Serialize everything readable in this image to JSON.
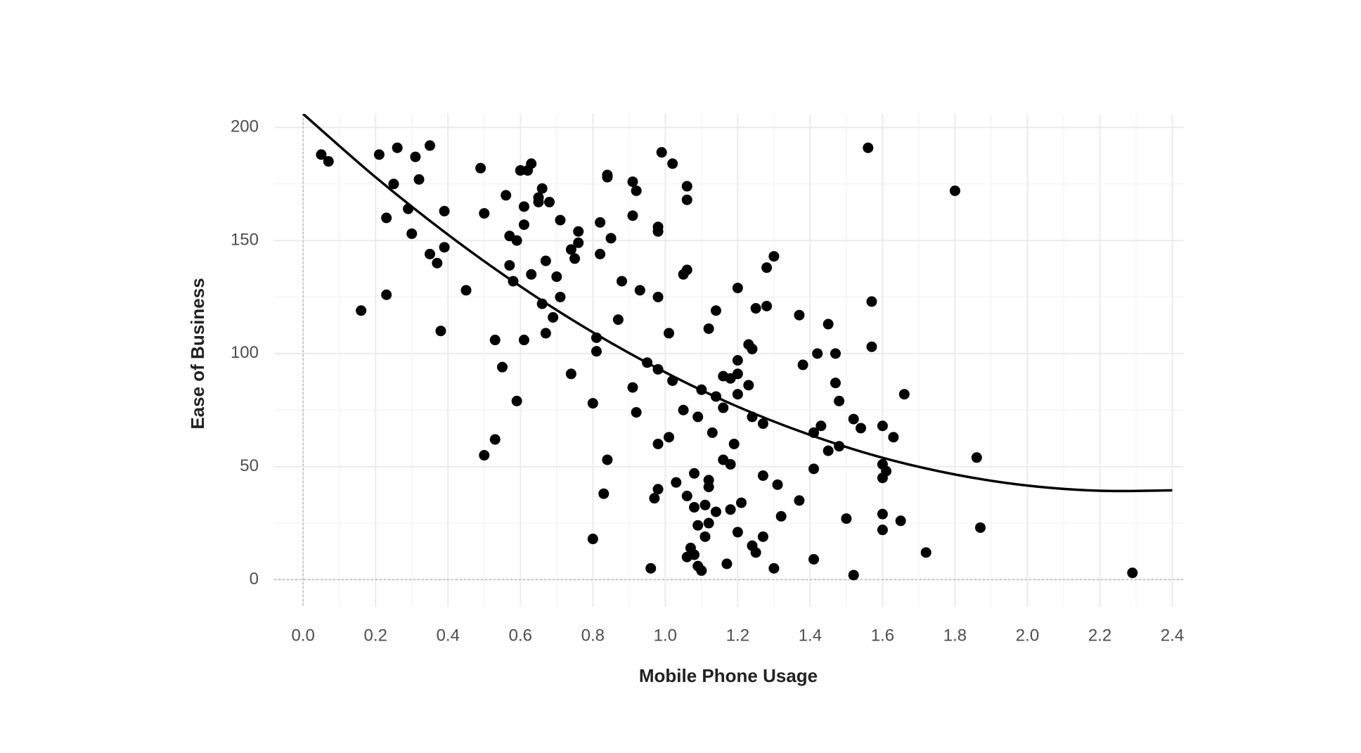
{
  "chart_data": {
    "type": "scatter",
    "x_label": "Mobile Phone Usage",
    "y_label": "Ease of Business",
    "xlim": [
      -0.08,
      2.43
    ],
    "ylim": [
      -12,
      206
    ],
    "xticks": [
      {
        "value": 0,
        "label": "0.0"
      },
      {
        "value": 0.2,
        "label": "0.2"
      },
      {
        "value": 0.4,
        "label": "0.4"
      },
      {
        "value": 0.6,
        "label": "0.6"
      },
      {
        "value": 0.8,
        "label": "0.8"
      },
      {
        "value": 1,
        "label": "1.0"
      },
      {
        "value": 1.2,
        "label": "1.2"
      },
      {
        "value": 1.4,
        "label": "1.4"
      },
      {
        "value": 1.6,
        "label": "1.6"
      },
      {
        "value": 1.8,
        "label": "1.8"
      },
      {
        "value": 2,
        "label": "2.0"
      },
      {
        "value": 2.2,
        "label": "2.2"
      },
      {
        "value": 2.4,
        "label": "2.4"
      }
    ],
    "yticks": [
      0,
      50,
      100,
      150,
      200
    ],
    "grid": true,
    "reference_lines": {
      "x": 0,
      "y": 0
    },
    "series": [
      {
        "color": "#000000",
        "x": [
          0.05,
          0.07,
          0.16,
          0.21,
          0.23,
          0.23,
          0.25,
          0.26,
          0.29,
          0.3,
          0.31,
          0.32,
          0.35,
          0.35,
          0.37,
          0.38,
          0.39,
          0.39,
          0.45,
          0.49,
          0.5,
          0.5,
          0.53,
          0.53,
          0.55,
          0.56,
          0.57,
          0.57,
          0.58,
          0.59,
          0.59,
          0.6,
          0.61,
          0.61,
          0.61,
          0.62,
          0.63,
          0.63,
          0.65,
          0.65,
          0.66,
          0.66,
          0.67,
          0.67,
          0.68,
          0.69,
          0.7,
          0.71,
          0.71,
          0.74,
          0.74,
          0.75,
          0.76,
          0.76,
          0.8,
          0.8,
          0.81,
          0.81,
          0.82,
          0.82,
          0.83,
          0.84,
          0.84,
          0.84,
          0.85,
          0.87,
          0.88,
          0.91,
          0.91,
          0.91,
          0.92,
          0.92,
          0.93,
          0.95,
          0.96,
          0.97,
          0.98,
          0.98,
          0.98,
          0.98,
          0.98,
          0.99,
          0.98,
          1.01,
          1.01,
          1.02,
          1.02,
          1.03,
          1.05,
          1.05,
          1.06,
          1.06,
          1.06,
          1.06,
          1.06,
          1.07,
          1.08,
          1.08,
          1.08,
          1.09,
          1.09,
          1.09,
          1.1,
          1.1,
          1.11,
          1.11,
          1.12,
          1.12,
          1.12,
          1.12,
          1.13,
          1.14,
          1.14,
          1.14,
          1.16,
          1.16,
          1.16,
          1.17,
          1.18,
          1.18,
          1.18,
          1.19,
          1.2,
          1.2,
          1.2,
          1.2,
          1.2,
          1.21,
          1.23,
          1.23,
          1.24,
          1.24,
          1.24,
          1.25,
          1.25,
          1.27,
          1.27,
          1.27,
          1.28,
          1.28,
          1.3,
          1.3,
          1.31,
          1.32,
          1.37,
          1.37,
          1.38,
          1.41,
          1.41,
          1.41,
          1.42,
          1.43,
          1.45,
          1.45,
          1.47,
          1.47,
          1.48,
          1.48,
          1.5,
          1.52,
          1.52,
          1.54,
          1.56,
          1.57,
          1.57,
          1.6,
          1.6,
          1.6,
          1.6,
          1.6,
          1.61,
          1.63,
          1.65,
          1.66,
          1.72,
          1.8,
          1.86,
          1.87,
          2.29
        ],
        "values": [
          188,
          185,
          119,
          188,
          160,
          126,
          175,
          191,
          164,
          153,
          187,
          177,
          144,
          192,
          140,
          110,
          163,
          147,
          128,
          182,
          162,
          55,
          106,
          62,
          94,
          170,
          152,
          139,
          132,
          79,
          150,
          181,
          106,
          165,
          157,
          181,
          135,
          184,
          167,
          169,
          173,
          122,
          141,
          109,
          167,
          116,
          134,
          159,
          125,
          146,
          91,
          142,
          149,
          154,
          18,
          78,
          107,
          101,
          158,
          144,
          38,
          53,
          178,
          179,
          151,
          115,
          132,
          161,
          176,
          85,
          74,
          172,
          128,
          96,
          5,
          36,
          125,
          154,
          156,
          93,
          60,
          189,
          40,
          109,
          63,
          88,
          184,
          43,
          75,
          135,
          174,
          10,
          168,
          137,
          37,
          14,
          11,
          47,
          32,
          72,
          24,
          6,
          4,
          84,
          33,
          19,
          111,
          25,
          44,
          41,
          65,
          119,
          81,
          30,
          76,
          53,
          90,
          7,
          31,
          89,
          51,
          60,
          129,
          97,
          91,
          21,
          82,
          34,
          86,
          104,
          72,
          102,
          15,
          12,
          120,
          69,
          46,
          19,
          121,
          138,
          5,
          143,
          42,
          28,
          35,
          117,
          95,
          65,
          9,
          49,
          100,
          68,
          113,
          57,
          87,
          100,
          79,
          59,
          27,
          71,
          2,
          67,
          191,
          123,
          103,
          68,
          51,
          45,
          29,
          22,
          48,
          63,
          26,
          82,
          12,
          172,
          54,
          23,
          3
        ]
      },
      {
        "type": "line",
        "color": "#000000",
        "x": [
          0,
          0.2,
          0.4,
          0.6,
          0.8,
          1.0,
          1.2,
          1.4,
          1.6,
          1.8,
          2.0,
          2.2,
          2.4
        ],
        "values": [
          206,
          178,
          152.6,
          129.7,
          109.4,
          91.7,
          76.5,
          64,
          53.9,
          46.5,
          41.6,
          39.3,
          39.5
        ]
      }
    ]
  }
}
